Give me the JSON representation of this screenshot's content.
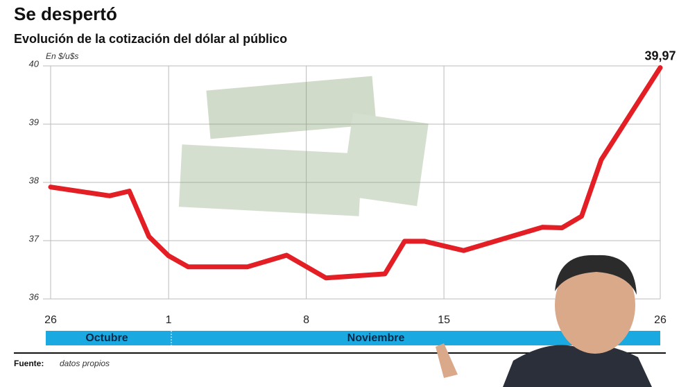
{
  "chart_data": {
    "type": "line",
    "title": "Se despertó",
    "subtitle": "Evolución de la cotización del dólar al público",
    "y_label": "En $/u$s",
    "months": [
      "Octubre",
      "Noviembre"
    ],
    "source_label": "Fuente:",
    "source": "datos propios",
    "x": [
      0,
      3,
      4,
      5,
      6,
      7,
      10,
      12,
      14,
      17,
      18,
      19,
      21,
      25,
      26,
      27,
      28,
      31
    ],
    "series": [
      {
        "name": "Cotización del dólar",
        "color": "#e31e24",
        "values": [
          37.92,
          37.77,
          37.85,
          37.07,
          36.74,
          36.55,
          36.55,
          36.75,
          36.36,
          36.43,
          36.99,
          36.99,
          36.83,
          37.23,
          37.22,
          37.42,
          38.39,
          39.97
        ],
        "value_labels": [
          null,
          null,
          null,
          null,
          null,
          null,
          null,
          null,
          null,
          null,
          null,
          null,
          null,
          null,
          null,
          null,
          null,
          "39,97"
        ]
      }
    ],
    "xlim": [
      0,
      31
    ],
    "xticks": [
      {
        "value": 0,
        "label": "26"
      },
      {
        "value": 6,
        "label": "1"
      },
      {
        "value": 13,
        "label": "8"
      },
      {
        "value": 20,
        "label": "15"
      },
      {
        "value": 31,
        "label": "26"
      }
    ],
    "ylim": [
      36,
      40
    ],
    "yticks": [
      36,
      37,
      38,
      39,
      40
    ],
    "grid": true
  }
}
